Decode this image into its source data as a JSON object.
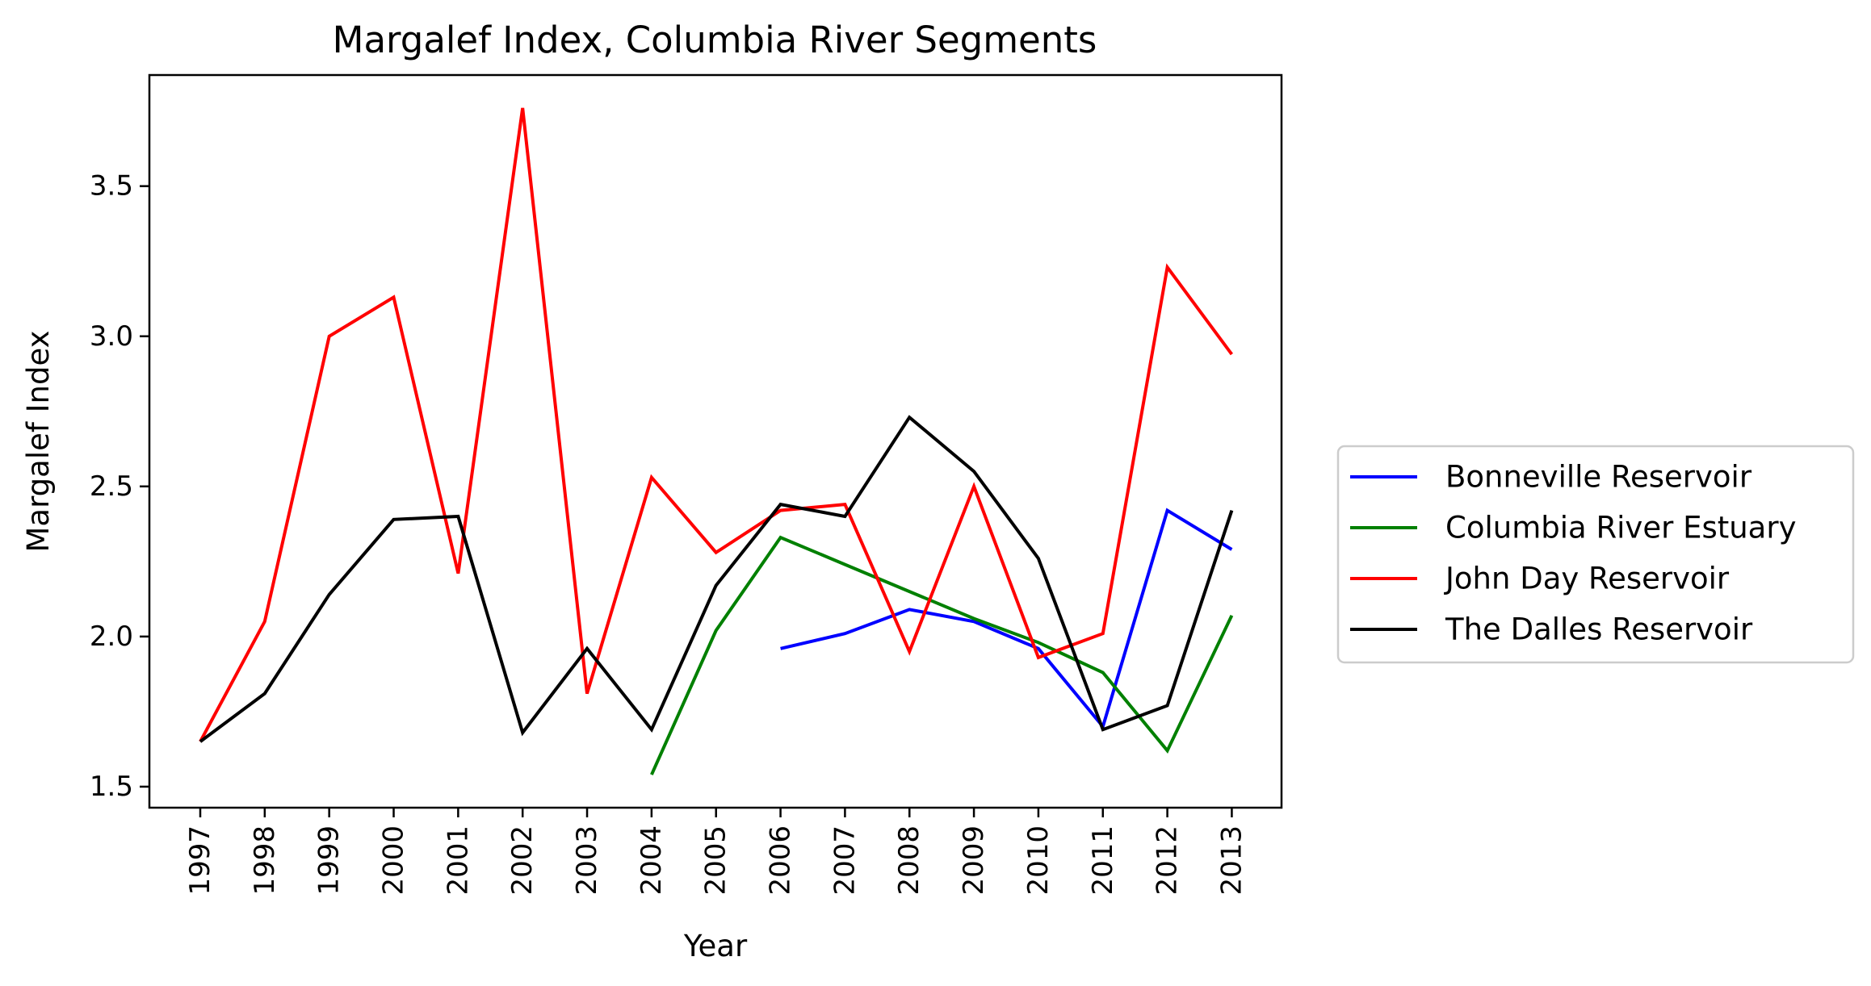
{
  "chart_data": {
    "type": "line",
    "title": "Margalef Index, Columbia River Segments",
    "xlabel": "Year",
    "ylabel": "Margalef Index",
    "x": [
      "1997",
      "1998",
      "1999",
      "2000",
      "2001",
      "2002",
      "2003",
      "2004",
      "2005",
      "2006",
      "2007",
      "2008",
      "2009",
      "2010",
      "2011",
      "2012",
      "2013"
    ],
    "ylim": [
      1.43,
      3.87
    ],
    "yticks": [
      "1.5",
      "2.0",
      "2.5",
      "3.0",
      "3.5"
    ],
    "grid": false,
    "legend_position": "outside-right",
    "series": [
      {
        "name": "Bonneville Reservoir",
        "color": "#0000ff",
        "values": [
          null,
          null,
          null,
          null,
          null,
          null,
          null,
          null,
          null,
          1.96,
          2.01,
          2.09,
          2.05,
          1.96,
          1.7,
          2.42,
          2.29
        ]
      },
      {
        "name": "Columbia River Estuary",
        "color": "#008000",
        "values": [
          null,
          null,
          null,
          null,
          null,
          null,
          null,
          1.54,
          2.02,
          2.33,
          2.24,
          2.15,
          2.06,
          1.98,
          1.88,
          1.62,
          2.07
        ]
      },
      {
        "name": "John Day Reservoir",
        "color": "#ff0000",
        "values": [
          1.65,
          2.05,
          3.0,
          3.13,
          2.21,
          3.76,
          1.81,
          2.53,
          2.28,
          2.42,
          2.44,
          1.95,
          2.5,
          1.93,
          2.01,
          3.23,
          2.94
        ]
      },
      {
        "name": "The Dalles Reservoir",
        "color": "#000000",
        "values": [
          1.65,
          1.81,
          2.14,
          2.39,
          2.4,
          1.68,
          1.96,
          1.69,
          2.17,
          2.44,
          2.4,
          2.73,
          2.55,
          2.26,
          1.69,
          1.77,
          2.42
        ]
      }
    ]
  }
}
